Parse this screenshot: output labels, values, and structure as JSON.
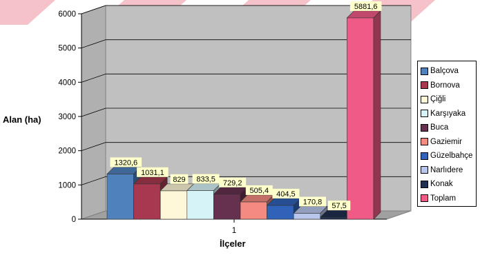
{
  "chart_data": {
    "type": "bar",
    "categories": [
      "1"
    ],
    "series": [
      {
        "name": "Balçova",
        "values": [
          1320.6
        ],
        "label": "1320,6",
        "color": "#4f81bd"
      },
      {
        "name": "Bornova",
        "values": [
          1031.1
        ],
        "label": "1031,1",
        "color": "#a8384f"
      },
      {
        "name": "Çiğli",
        "values": [
          829
        ],
        "label": "829",
        "color": "#fff8d8"
      },
      {
        "name": "Karşıyaka",
        "values": [
          833.5
        ],
        "label": "833,5",
        "color": "#d6f4f8"
      },
      {
        "name": "Buca",
        "values": [
          729.2
        ],
        "label": "729,2",
        "color": "#66304f"
      },
      {
        "name": "Gaziemir",
        "values": [
          505.4
        ],
        "label": "505,4",
        "color": "#f48a80"
      },
      {
        "name": "Güzelbahçe",
        "values": [
          404.5
        ],
        "label": "404,5",
        "color": "#2f62b8"
      },
      {
        "name": "Narlıdere",
        "values": [
          170.8
        ],
        "label": "170,8",
        "color": "#b8c6ec"
      },
      {
        "name": "Konak",
        "values": [
          57.5
        ],
        "label": "57,5",
        "color": "#203050"
      },
      {
        "name": "Toplam",
        "values": [
          5881.6
        ],
        "label": "5881,6",
        "color": "#f05a87"
      }
    ],
    "title": "",
    "xlabel": "İlçeler",
    "ylabel": "Alan (ha)",
    "ylim": [
      0,
      6000
    ],
    "yticks": [
      0,
      1000,
      2000,
      3000,
      4000,
      5000,
      6000
    ],
    "ytick_labels": [
      "0",
      "1000",
      "2000",
      "3000",
      "4000",
      "5000",
      "6000"
    ],
    "grid": true,
    "legend": "right",
    "colors": {
      "wall": "#c0c0c0",
      "floor": "#a0a0a0",
      "label_bg": "#ffffcc",
      "watermark": "#e05060"
    }
  }
}
